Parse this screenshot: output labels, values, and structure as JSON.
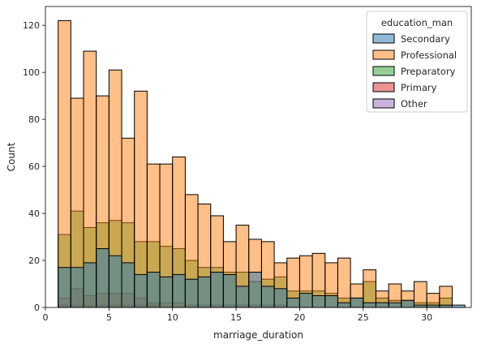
{
  "chart_data": {
    "type": "bar",
    "subtype": "overlaid-histogram",
    "xlabel": "marriage_duration",
    "ylabel": "Count",
    "xlim": [
      0,
      33.5
    ],
    "ylim": [
      0,
      128
    ],
    "xticks": [
      0,
      5,
      10,
      15,
      20,
      25,
      30
    ],
    "yticks": [
      0,
      20,
      40,
      60,
      80,
      100,
      120
    ],
    "bin_start": 1,
    "bin_width": 1.0,
    "legend": {
      "title": "education_man",
      "placement": "top-right"
    },
    "series": [
      {
        "name": "Secondary",
        "color": "#1f77b4",
        "values": [
          17,
          17,
          19,
          25,
          22,
          19,
          14,
          15,
          13,
          14,
          12,
          13,
          15,
          14,
          9,
          15,
          9,
          8,
          4,
          6,
          5,
          5,
          2,
          4,
          2,
          2,
          2,
          3,
          1,
          1,
          1,
          1
        ]
      },
      {
        "name": "Professional",
        "color": "#ff7f0e",
        "values": [
          122,
          89,
          109,
          90,
          101,
          72,
          92,
          61,
          61,
          64,
          48,
          44,
          39,
          28,
          35,
          29,
          28,
          19,
          21,
          22,
          23,
          19,
          21,
          10,
          16,
          7,
          10,
          7,
          11,
          6,
          9,
          0
        ]
      },
      {
        "name": "Preparatory",
        "color": "#2ca02c",
        "values": [
          31,
          41,
          34,
          36,
          37,
          36,
          28,
          28,
          26,
          25,
          20,
          17,
          17,
          15,
          15,
          11,
          12,
          13,
          7,
          7,
          7,
          6,
          4,
          4,
          11,
          4,
          3,
          3,
          2,
          2,
          4,
          0
        ]
      },
      {
        "name": "Primary",
        "color": "#d62728",
        "values": [
          4,
          8,
          5,
          6,
          6,
          6,
          4,
          2,
          2,
          2,
          1,
          1,
          1,
          1,
          1,
          1,
          1,
          1,
          0,
          0,
          0,
          0,
          0,
          0,
          0,
          0,
          0,
          0,
          0,
          0,
          0,
          0
        ]
      },
      {
        "name": "Other",
        "color": "#9467bd",
        "values": [
          1,
          1,
          1,
          1,
          1,
          1,
          1,
          1,
          0,
          0,
          0,
          0,
          0,
          0,
          0,
          0,
          0,
          0,
          0,
          0,
          0,
          0,
          0,
          0,
          0,
          0,
          0,
          0,
          0,
          0,
          0,
          0
        ]
      }
    ]
  }
}
